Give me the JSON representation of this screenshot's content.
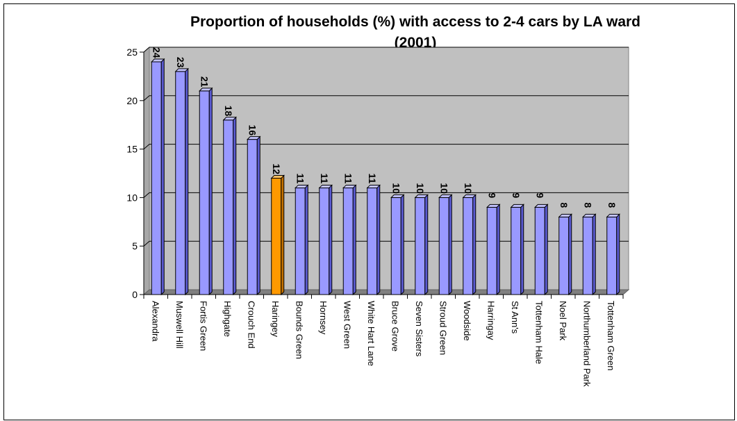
{
  "chart_data": {
    "type": "bar",
    "title_line1": "Proportion of households (%)  with access to 2-4 cars by LA ward",
    "title_line2": "(2001)",
    "categories": [
      "Alexandra",
      "Muswell Hill",
      "Fortis Green",
      "Highgate",
      "Crouch End",
      "Haringey",
      "Bounds Green",
      "Hornsey",
      "West Green",
      "White Hart Lane",
      "Bruce Grove",
      "Seven Sisters",
      "Stroud Green",
      "Woodside",
      "Harringay",
      "St Ann's",
      "Tottenham Hale",
      "Noel Park",
      "Northumberland Park",
      "Tottenham Green"
    ],
    "values": [
      24,
      23,
      21,
      18,
      16,
      12,
      11,
      11,
      11,
      11,
      10,
      10,
      10,
      10,
      9,
      9,
      9,
      8,
      8,
      8
    ],
    "data_labels": [
      "24",
      "23",
      "21",
      "18",
      "16",
      "12",
      "11",
      "11",
      "11",
      "11",
      "10",
      "10",
      "10",
      "10",
      "9",
      "9",
      "9",
      "8",
      "8",
      "8"
    ],
    "highlight_index": 5,
    "ylim": [
      0,
      25
    ],
    "yticks": [
      "0",
      "5",
      "10",
      "15",
      "20",
      "25"
    ],
    "grid": true,
    "colors": {
      "bar": "#9999ff",
      "bar_side": "#5a5ad0",
      "bar_top": "#c4c4ff",
      "highlight": "#ff9900",
      "highlight_side": "#c06f00",
      "highlight_top": "#ffc060",
      "plot_background": "#c0c0c0",
      "floor": "#808080"
    }
  }
}
